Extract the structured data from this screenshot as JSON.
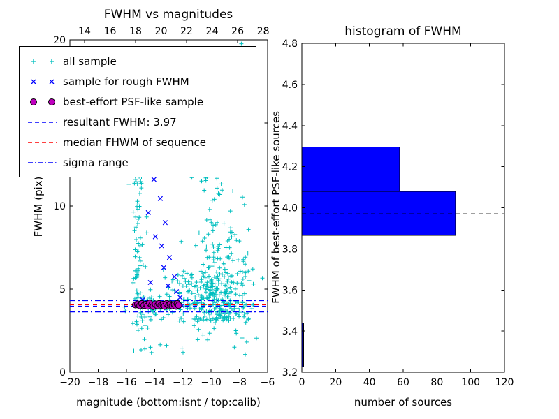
{
  "figure": {
    "background": "#ffffff"
  },
  "legend": {
    "items": [
      {
        "label": "all sample",
        "marker": "plus",
        "color": "#00bfbf"
      },
      {
        "label": "sample for rough FWHM",
        "marker": "x",
        "color": "#0000ff"
      },
      {
        "label": "best-effort PSF-like sample",
        "marker": "circle",
        "color": "#bf00bf",
        "edge_color": "#000000"
      },
      {
        "label": "resultant FWHM: 3.97",
        "marker": "dashed-line",
        "color": "#0000ff"
      },
      {
        "label": "median FHWM of sequence",
        "marker": "dashed-line",
        "color": "#ff0000"
      },
      {
        "label": "sigma range",
        "marker": "dashdot-line",
        "color": "#0000ff"
      }
    ]
  },
  "chart_data": [
    {
      "type": "scatter",
      "title": "FWHM vs magnitudes",
      "xlabel": "magnitude (bottom:isnt / top:calib)",
      "ylabel": "FWHM (pix)",
      "xlim": [
        -20,
        -6
      ],
      "xlim_top": [
        12.85,
        28.35
      ],
      "ylim": [
        0,
        20
      ],
      "xticks_bottom": {
        "values": [
          -20,
          -18,
          -16,
          -14,
          -12,
          -10,
          -8,
          -6
        ],
        "labels": [
          "−20",
          "−18",
          "−16",
          "−14",
          "−12",
          "−10",
          "−8",
          "−6"
        ]
      },
      "xticks_top": {
        "values": [
          14,
          16,
          18,
          20,
          22,
          24,
          26,
          28
        ],
        "labels": [
          "14",
          "16",
          "18",
          "20",
          "22",
          "24",
          "26",
          "28"
        ]
      },
      "yticks": {
        "values": [
          0,
          5,
          10,
          15,
          20
        ],
        "labels": [
          "0",
          "5",
          "10",
          "15",
          "20"
        ]
      },
      "series": [
        {
          "name": "all sample",
          "marker": "plus",
          "color": "#00bfbf",
          "clusters": [
            {
              "shape": "column",
              "x_mean": -15.1,
              "x_sd": 0.22,
              "y_min": 2.6,
              "y_max": 13.0,
              "n": 85
            },
            {
              "shape": "gauss_exp",
              "x_mean": -9.4,
              "x_sd": 1.05,
              "y_base": 3.1,
              "y_scale": 2.3,
              "y_max": 19.8,
              "n": 340
            },
            {
              "shape": "gauss",
              "x_mean": -11.7,
              "x_sd": 0.9,
              "y_mean": 4.4,
              "y_sd": 0.9,
              "n": 70
            },
            {
              "shape": "gauss",
              "x_mean": -13.8,
              "x_sd": 1.0,
              "y_mean": 4.0,
              "y_sd": 0.35,
              "n": 60
            },
            {
              "shape": "uniform",
              "x_min": -16.5,
              "x_max": -6.6,
              "y_min": 1.0,
              "y_max": 3.2,
              "n": 30
            },
            {
              "shape": "uniform",
              "x_min": -11.5,
              "x_max": -7.6,
              "y_min": 17.0,
              "y_max": 19.9,
              "n": 8
            }
          ]
        },
        {
          "name": "sample for rough FWHM",
          "marker": "x",
          "color": "#0000ff",
          "points": [
            [
              -14.05,
              11.6
            ],
            [
              -13.6,
              10.45
            ],
            [
              -14.45,
              9.6
            ],
            [
              -13.25,
              9.0
            ],
            [
              -13.95,
              8.15
            ],
            [
              -13.5,
              7.6
            ],
            [
              -12.95,
              6.9
            ],
            [
              -13.35,
              6.3
            ],
            [
              -12.6,
              5.75
            ],
            [
              -13.05,
              5.2
            ],
            [
              -12.45,
              4.85
            ],
            [
              -14.3,
              5.4
            ],
            [
              -14.85,
              4.35
            ],
            [
              -12.2,
              4.5
            ],
            [
              -15.15,
              4.2
            ],
            [
              -12.05,
              4.0
            ]
          ]
        },
        {
          "name": "best-effort PSF-like sample",
          "marker": "circle",
          "color": "#bf00bf",
          "edge_color": "#000000",
          "points": [
            [
              -15.35,
              4.05
            ],
            [
              -15.2,
              4.1
            ],
            [
              -15.05,
              4.0
            ],
            [
              -14.9,
              4.12
            ],
            [
              -14.75,
              4.02
            ],
            [
              -14.6,
              4.08
            ],
            [
              -14.5,
              3.98
            ],
            [
              -14.35,
              4.15
            ],
            [
              -14.2,
              4.05
            ],
            [
              -14.1,
              3.96
            ],
            [
              -13.95,
              4.1
            ],
            [
              -13.8,
              4.0
            ],
            [
              -13.7,
              4.12
            ],
            [
              -13.55,
              4.03
            ],
            [
              -13.4,
              4.08
            ],
            [
              -13.3,
              3.97
            ],
            [
              -13.15,
              4.13
            ],
            [
              -13.0,
              4.04
            ],
            [
              -12.9,
              4.1
            ],
            [
              -12.75,
              4.0
            ],
            [
              -12.6,
              4.07
            ],
            [
              -12.5,
              3.98
            ],
            [
              -12.4,
              4.12
            ],
            [
              -12.3,
              4.03
            ]
          ]
        }
      ],
      "lines": [
        {
          "name": "resultant FWHM",
          "y": 3.97,
          "style": "dashed",
          "color": "#0000ff"
        },
        {
          "name": "median FHWM of sequence",
          "y": 4.06,
          "style": "dashed",
          "color": "#ff0000"
        },
        {
          "name": "sigma range upper",
          "y": 4.31,
          "style": "dashdot",
          "color": "#0000ff"
        },
        {
          "name": "sigma range lower",
          "y": 3.63,
          "style": "dashdot",
          "color": "#0000ff"
        }
      ],
      "resultant_fwhm": 3.97
    },
    {
      "type": "bar",
      "orientation": "horizontal",
      "title": "histogram of FWHM",
      "xlabel": "number of sources",
      "ylabel": "FWHM of best-effort PSF-like sources",
      "xlim": [
        0,
        120
      ],
      "ylim": [
        3.2,
        4.8
      ],
      "xticks": {
        "values": [
          0,
          20,
          40,
          60,
          80,
          100,
          120
        ],
        "labels": [
          "0",
          "20",
          "40",
          "60",
          "80",
          "100",
          "120"
        ]
      },
      "yticks": {
        "values": [
          3.2,
          3.4,
          3.6,
          3.8,
          4.0,
          4.2,
          4.4,
          4.6,
          4.8
        ],
        "labels": [
          "3.2",
          "3.4",
          "3.6",
          "3.8",
          "4.0",
          "4.2",
          "4.4",
          "4.6",
          "4.8"
        ]
      },
      "bar_color": "#0000ff",
      "bars": [
        {
          "y0": 3.225,
          "y1": 3.44,
          "value": 1
        },
        {
          "y0": 3.865,
          "y1": 4.08,
          "value": 91
        },
        {
          "y0": 4.08,
          "y1": 4.295,
          "value": 58
        }
      ],
      "dashed_line": {
        "y": 3.97,
        "color": "#000000",
        "style": "dashed"
      }
    }
  ]
}
